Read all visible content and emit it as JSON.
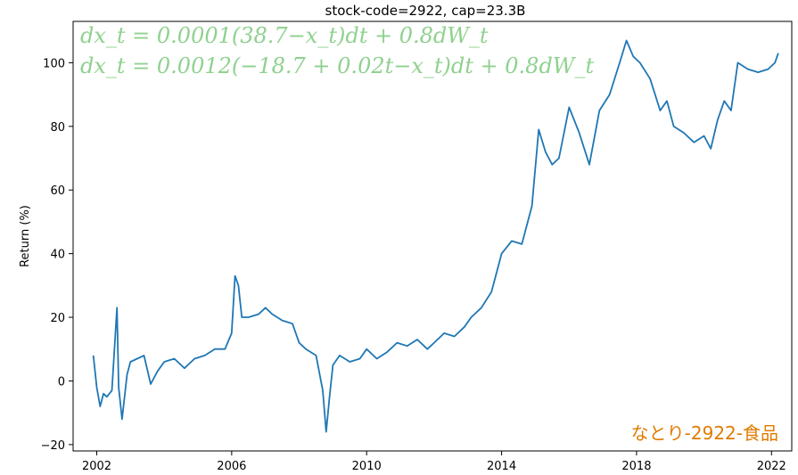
{
  "chart_data": {
    "type": "line",
    "title": "stock-code=2922, cap=23.3B",
    "xlabel": "",
    "ylabel": "Return (%)",
    "xlim": [
      2001.3,
      2022.6
    ],
    "ylim": [
      -22,
      113
    ],
    "x_ticks": [
      2002,
      2006,
      2010,
      2014,
      2018,
      2022
    ],
    "x_tick_labels": [
      "2002",
      "2006",
      "2010",
      "2014",
      "2018",
      "2022"
    ],
    "y_ticks": [
      -20,
      0,
      20,
      40,
      60,
      80,
      100
    ],
    "y_tick_labels": [
      "−20",
      "0",
      "20",
      "40",
      "60",
      "80",
      "100"
    ],
    "grid": false,
    "series": [
      {
        "color": "#1f77b4",
        "x": [
          2001.9,
          2002.0,
          2002.1,
          2002.2,
          2002.3,
          2002.45,
          2002.6,
          2002.65,
          2002.75,
          2002.9,
          2003.0,
          2003.2,
          2003.4,
          2003.6,
          2003.8,
          2004.0,
          2004.3,
          2004.6,
          2004.9,
          2005.2,
          2005.5,
          2005.8,
          2006.0,
          2006.1,
          2006.2,
          2006.3,
          2006.5,
          2006.8,
          2007.0,
          2007.2,
          2007.5,
          2007.8,
          2008.0,
          2008.2,
          2008.5,
          2008.7,
          2008.8,
          2008.9,
          2009.0,
          2009.2,
          2009.5,
          2009.8,
          2010.0,
          2010.3,
          2010.6,
          2010.9,
          2011.2,
          2011.5,
          2011.8,
          2012.0,
          2012.3,
          2012.6,
          2012.9,
          2013.1,
          2013.4,
          2013.7,
          2014.0,
          2014.3,
          2014.6,
          2014.9,
          2015.1,
          2015.3,
          2015.5,
          2015.7,
          2016.0,
          2016.3,
          2016.6,
          2016.9,
          2017.2,
          2017.5,
          2017.7,
          2017.9,
          2018.1,
          2018.4,
          2018.7,
          2018.9,
          2019.1,
          2019.4,
          2019.7,
          2020.0,
          2020.2,
          2020.4,
          2020.6,
          2020.8,
          2021.0,
          2021.3,
          2021.6,
          2021.9,
          2022.1,
          2022.2
        ],
        "y": [
          8,
          -2,
          -8,
          -4,
          -5,
          -3,
          23,
          -2,
          -12,
          2,
          6,
          7,
          8,
          -1,
          3,
          6,
          7,
          4,
          7,
          8,
          10,
          10,
          15,
          33,
          30,
          20,
          20,
          21,
          23,
          21,
          19,
          18,
          12,
          10,
          8,
          -3,
          -16,
          -5,
          5,
          8,
          6,
          7,
          10,
          7,
          9,
          12,
          11,
          13,
          10,
          12,
          15,
          14,
          17,
          20,
          23,
          28,
          40,
          44,
          43,
          55,
          79,
          72,
          68,
          70,
          86,
          78,
          68,
          85,
          90,
          100,
          107,
          102,
          100,
          95,
          85,
          88,
          80,
          78,
          75,
          77,
          73,
          82,
          88,
          85,
          100,
          98,
          97,
          98,
          100,
          103
        ]
      }
    ],
    "annotations": [
      "dx_t = 0.0001(38.7−x_t)dt + 0.8dW_t",
      "dx_t = 0.0012(−18.7 + 0.02t−x_t)dt + 0.8dW_t"
    ],
    "watermark": "なとり-2922-食品"
  }
}
